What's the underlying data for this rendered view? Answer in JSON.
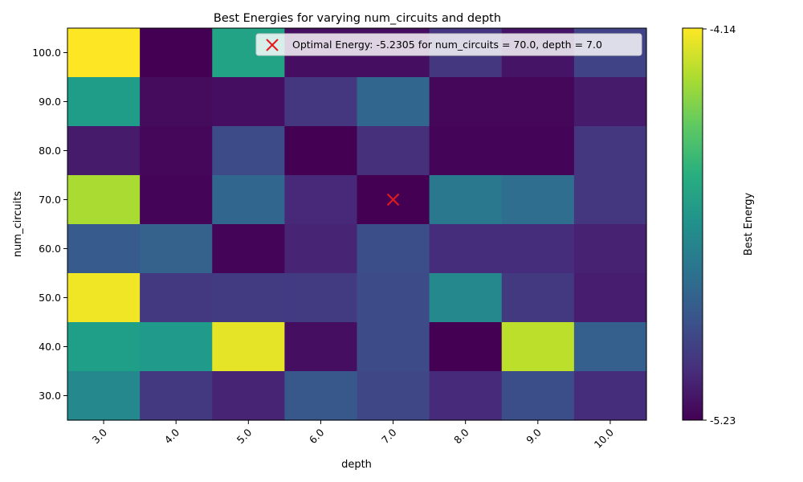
{
  "chart_data": {
    "type": "heatmap",
    "title": "Best Energies for varying num_circuits and depth",
    "xlabel": "depth",
    "ylabel": "num_circuits",
    "x_categories": [
      "3.0",
      "4.0",
      "5.0",
      "6.0",
      "7.0",
      "8.0",
      "9.0",
      "10.0"
    ],
    "y_categories": [
      "100.0",
      "90.0",
      "80.0",
      "70.0",
      "60.0",
      "50.0",
      "40.0",
      "30.0"
    ],
    "values": [
      [
        -4.14,
        -5.23,
        -4.6,
        -5.19,
        -5.19,
        -5.06,
        -5.17,
        -5.01
      ],
      [
        -4.63,
        -5.2,
        -5.19,
        -5.06,
        -4.87,
        -5.21,
        -5.21,
        -5.15
      ],
      [
        -5.15,
        -5.21,
        -4.98,
        -5.23,
        -5.08,
        -5.22,
        -5.22,
        -5.06
      ],
      [
        -4.28,
        -5.22,
        -4.87,
        -5.11,
        -5.2305,
        -4.79,
        -4.84,
        -5.06
      ],
      [
        -4.92,
        -4.89,
        -5.22,
        -5.12,
        -4.97,
        -5.09,
        -5.09,
        -5.13
      ],
      [
        -4.16,
        -5.05,
        -5.04,
        -5.04,
        -4.98,
        -4.72,
        -5.05,
        -5.14
      ],
      [
        -4.62,
        -4.64,
        -4.18,
        -5.19,
        -4.98,
        -5.23,
        -4.25,
        -4.9
      ],
      [
        -4.72,
        -5.05,
        -5.12,
        -4.93,
        -5.0,
        -5.1,
        -4.97,
        -5.09
      ]
    ],
    "vmin": -5.23,
    "vmax": -4.14,
    "colormap": "viridis",
    "colorbar": {
      "label": "Best Energy",
      "tick_top": "-4.14",
      "tick_bottom": "-5.23"
    },
    "marker": {
      "x": "7.0",
      "y": "70.0",
      "symbol": "x",
      "color": "#e41a1c"
    },
    "legend": {
      "position": "top-right",
      "label": "Optimal Energy: -5.2305 for num_circuits = 70.0, depth = 7.0"
    },
    "grid": false
  }
}
